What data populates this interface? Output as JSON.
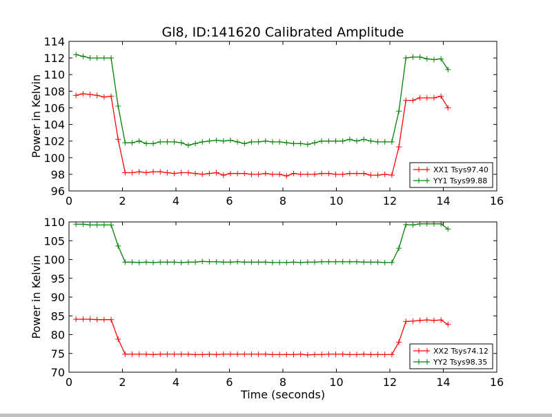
{
  "chart_data": [
    {
      "type": "line",
      "title": "Gl8, ID:141620 Calibrated Amplitude",
      "xlabel": "",
      "ylabel": "Power in Kelvin",
      "xlim": [
        0,
        16
      ],
      "ylim": [
        96,
        114
      ],
      "xticks": [
        0,
        2,
        4,
        6,
        8,
        10,
        12,
        14,
        16
      ],
      "yticks": [
        96,
        98,
        100,
        102,
        104,
        106,
        108,
        110,
        112,
        114
      ],
      "legend_position": "lower-right",
      "series": [
        {
          "name": "XX1 Tsys97.40",
          "color": "#ff0000",
          "values": [
            107.5,
            107.7,
            107.6,
            107.5,
            107.3,
            107.4,
            102.2,
            98.2,
            98.2,
            98.3,
            98.2,
            98.3,
            98.3,
            98.2,
            98.1,
            98.2,
            98.2,
            98.1,
            98.0,
            98.1,
            98.2,
            97.9,
            98.1,
            98.1,
            98.1,
            98.0,
            98.0,
            98.1,
            98.0,
            98.0,
            97.8,
            98.1,
            98.0,
            98.0,
            98.0,
            98.1,
            98.1,
            98.0,
            98.0,
            98.1,
            98.1,
            98.1,
            97.9,
            97.9,
            98.0,
            97.9,
            101.3,
            106.9,
            106.9,
            107.2,
            107.2,
            107.2,
            107.4,
            106.0
          ]
        },
        {
          "name": "YY1 Tsys99.88",
          "color": "#008000",
          "values": [
            112.4,
            112.2,
            112.0,
            112.0,
            112.0,
            112.0,
            106.2,
            101.8,
            101.8,
            102.0,
            101.7,
            101.7,
            101.9,
            101.9,
            101.9,
            101.8,
            101.5,
            101.7,
            101.9,
            102.0,
            102.1,
            102.0,
            102.1,
            101.9,
            101.7,
            101.9,
            101.9,
            102.0,
            101.9,
            101.9,
            101.8,
            101.7,
            101.7,
            101.6,
            101.8,
            102.0,
            102.0,
            102.0,
            102.0,
            102.2,
            102.0,
            102.2,
            102.0,
            101.9,
            101.9,
            101.9,
            105.6,
            112.0,
            112.1,
            112.1,
            111.9,
            111.8,
            111.9,
            110.6
          ]
        }
      ]
    },
    {
      "type": "line",
      "title": "",
      "xlabel": "Time (seconds)",
      "ylabel": "Power in Kelvin",
      "xlim": [
        0,
        16
      ],
      "ylim": [
        70,
        110
      ],
      "xticks": [
        0,
        2,
        4,
        6,
        8,
        10,
        12,
        14,
        16
      ],
      "yticks": [
        70,
        75,
        80,
        85,
        90,
        95,
        100,
        105,
        110
      ],
      "legend_position": "lower-right",
      "series": [
        {
          "name": "XX2 Tsys74.12",
          "color": "#ff0000",
          "values": [
            84.1,
            84.1,
            84.1,
            84.0,
            84.0,
            84.0,
            78.8,
            74.8,
            74.8,
            74.8,
            74.8,
            74.7,
            74.8,
            74.8,
            74.8,
            74.8,
            74.8,
            74.7,
            74.7,
            74.8,
            74.7,
            74.8,
            74.8,
            74.8,
            74.8,
            74.8,
            74.8,
            74.8,
            74.7,
            74.7,
            74.7,
            74.7,
            74.8,
            74.6,
            74.7,
            74.7,
            74.8,
            74.8,
            74.8,
            74.7,
            74.7,
            74.8,
            74.7,
            74.7,
            74.7,
            74.7,
            78.0,
            83.5,
            83.6,
            83.8,
            83.9,
            83.8,
            83.9,
            82.7
          ]
        },
        {
          "name": "YY2 Tsys98.35",
          "color": "#008000",
          "values": [
            109.4,
            109.4,
            109.2,
            109.2,
            109.2,
            109.2,
            103.6,
            99.3,
            99.3,
            99.2,
            99.3,
            99.2,
            99.3,
            99.3,
            99.3,
            99.2,
            99.3,
            99.3,
            99.5,
            99.4,
            99.4,
            99.3,
            99.3,
            99.4,
            99.3,
            99.3,
            99.3,
            99.3,
            99.2,
            99.2,
            99.2,
            99.3,
            99.2,
            99.3,
            99.3,
            99.4,
            99.4,
            99.4,
            99.4,
            99.4,
            99.4,
            99.3,
            99.3,
            99.3,
            99.2,
            99.2,
            103.0,
            109.3,
            109.2,
            109.5,
            109.5,
            109.5,
            109.5,
            108.1
          ]
        }
      ]
    }
  ],
  "x_step": 0.2625
}
